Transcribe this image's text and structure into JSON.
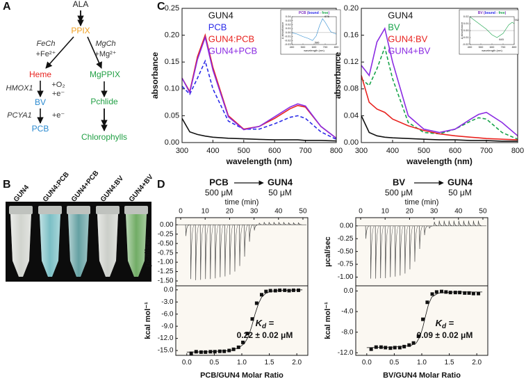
{
  "panels": [
    "A",
    "B",
    "C",
    "D"
  ],
  "pathway": {
    "nodes": [
      {
        "label": "ALA",
        "color": "#222222"
      },
      {
        "label": "PPIX",
        "color": "#f0a020"
      },
      {
        "label": "Heme",
        "color": "#e8221e"
      },
      {
        "label": "MgPPIX",
        "color": "#22a045"
      },
      {
        "label": "BV",
        "color": "#2a8ad0"
      },
      {
        "label": "PCB",
        "color": "#2a8ad0"
      },
      {
        "label": "Pchlide",
        "color": "#22a045"
      },
      {
        "label": "Chlorophylls",
        "color": "#22a045"
      }
    ],
    "enzymes": [
      "FeCh",
      "MgCh",
      "HMOX1",
      "PCYA1"
    ],
    "cofactors": [
      "+Fe²⁺",
      "+Mg²⁺",
      "+O₂",
      "+e⁻",
      "+e⁻"
    ]
  },
  "photo": {
    "labels": [
      "GUN4",
      "GUN4:PCB",
      "GUN4+PCB",
      "GUN4:BV",
      "GUN4+BV"
    ]
  },
  "chart_data": [
    {
      "type": "line",
      "xlabel": "wavelength (nm)",
      "ylabel": "absorbance",
      "legend": "upper-left",
      "xlim": [
        300,
        800
      ],
      "xticks": [
        300,
        400,
        500,
        600,
        700,
        800
      ],
      "ylim": [
        0,
        0.25
      ],
      "yticks": [
        {
          "value": 0,
          "label": "0.00"
        },
        0.05,
        {
          "value": 0.1,
          "label": "0.10"
        },
        0.15,
        {
          "value": 0.2,
          "label": "0.20"
        },
        0.25
      ],
      "x": [
        300,
        325,
        350,
        375,
        400,
        450,
        500,
        550,
        600,
        650,
        675,
        700,
        750,
        800
      ],
      "series": [
        {
          "name": "GUN4",
          "color": "#111111",
          "dashed": false,
          "values": [
            0.045,
            0.02,
            0.015,
            0.012,
            0.01,
            0.008,
            0.007,
            0.006,
            0.005,
            0.005,
            0.005,
            0.004,
            0.004,
            0.003
          ]
        },
        {
          "name": "PCB",
          "color": "#2a2ae8",
          "dashed": true,
          "values": [
            0.105,
            0.09,
            0.12,
            0.152,
            0.1,
            0.04,
            0.025,
            0.025,
            0.035,
            0.047,
            0.05,
            0.045,
            0.02,
            0.006
          ]
        },
        {
          "name": "GUN4:PCB",
          "color": "#e8221e",
          "dashed": false,
          "values": [
            0.12,
            0.095,
            0.16,
            0.2,
            0.14,
            0.05,
            0.025,
            0.03,
            0.045,
            0.063,
            0.069,
            0.066,
            0.03,
            0.008
          ]
        },
        {
          "name": "GUN4+PCB",
          "color": "#8a2be2",
          "dashed": false,
          "values": [
            0.12,
            0.093,
            0.155,
            0.196,
            0.135,
            0.048,
            0.024,
            0.03,
            0.048,
            0.066,
            0.072,
            0.068,
            0.03,
            0.008
          ]
        }
      ]
    },
    {
      "type": "line",
      "title_parts": [
        "PCB (",
        "bound",
        " - ",
        "free",
        ")"
      ],
      "title_colors": [
        "#7a2bbf",
        "#2a2ae8",
        "#7a2bbf",
        "#17a34a",
        "#7a2bbf"
      ],
      "xlabel": "wavelength (nm)",
      "ylabel": "Δ absorbance",
      "xlim": [
        400,
        800
      ],
      "xticks": [
        400,
        500,
        600,
        700,
        800
      ],
      "ylim": [
        -0.03,
        0.04
      ],
      "yticks": [
        0.04,
        0.03,
        0.02,
        0.01,
        {
          "value": 0,
          "label": "0.00"
        },
        -0.01,
        -0.02,
        -0.03
      ],
      "series": [
        {
          "color": "#2a8ad0",
          "dashed": false,
          "x": [
            400,
            450,
            500,
            550,
            586,
            620,
            650,
            676,
            700,
            750,
            800
          ],
          "values": [
            0.0,
            -0.004,
            -0.01,
            -0.015,
            -0.02,
            -0.008,
            0.018,
            0.035,
            0.026,
            0.002,
            -0.004
          ]
        }
      ],
      "annotations": [
        {
          "label": "676",
          "x": 676,
          "y": 0.035
        },
        {
          "label": "586",
          "x": 586,
          "y": -0.02
        }
      ]
    },
    {
      "type": "line",
      "xlabel": "wavelength (nm)",
      "ylabel": "absorbance",
      "legend": "upper-left",
      "xlim": [
        300,
        800
      ],
      "xticks": [
        300,
        400,
        500,
        600,
        700,
        800
      ],
      "ylim": [
        0,
        0.2
      ],
      "yticks": [
        {
          "value": 0,
          "label": "0.00"
        },
        0.04,
        0.08,
        0.12,
        0.16,
        {
          "value": 0.2,
          "label": "0.20"
        }
      ],
      "x": [
        300,
        325,
        350,
        375,
        400,
        450,
        500,
        550,
        600,
        650,
        675,
        700,
        750,
        800
      ],
      "series": [
        {
          "name": "GUN4",
          "color": "#111111",
          "dashed": false,
          "values": [
            0.04,
            0.015,
            0.01,
            0.008,
            0.007,
            0.006,
            0.005,
            0.004,
            0.004,
            0.003,
            0.003,
            0.003,
            0.002,
            0.002
          ]
        },
        {
          "name": "BV",
          "color": "#17a34a",
          "dashed": true,
          "values": [
            0.095,
            0.085,
            0.11,
            0.142,
            0.095,
            0.03,
            0.015,
            0.013,
            0.02,
            0.032,
            0.037,
            0.035,
            0.015,
            0.005
          ]
        },
        {
          "name": "GUN4:BV",
          "color": "#e8221e",
          "dashed": false,
          "values": [
            0.1,
            0.06,
            0.05,
            0.045,
            0.035,
            0.025,
            0.018,
            0.013,
            0.01,
            0.008,
            0.007,
            0.006,
            0.005,
            0.004
          ]
        },
        {
          "name": "GUN4+BV",
          "color": "#8a2be2",
          "dashed": false,
          "values": [
            0.115,
            0.1,
            0.15,
            0.17,
            0.12,
            0.04,
            0.02,
            0.015,
            0.02,
            0.035,
            0.042,
            0.045,
            0.03,
            0.01
          ]
        }
      ]
    },
    {
      "type": "line",
      "title_parts": [
        "BV (",
        "bound",
        " - ",
        "free",
        ")"
      ],
      "title_colors": [
        "#7a2bbf",
        "#2a2ae8",
        "#7a2bbf",
        "#17a34a",
        "#7a2bbf"
      ],
      "xlabel": "wavelength (nm)",
      "ylabel": "Δ absorbance",
      "xlim": [
        400,
        800
      ],
      "xticks": [
        400,
        500,
        600,
        700,
        800
      ],
      "ylim": [
        -0.02,
        0.02
      ],
      "yticks": [
        0.02,
        0.01,
        {
          "value": 0,
          "label": "0.00"
        },
        -0.01,
        -0.02
      ],
      "series": [
        {
          "color": "#17a34a",
          "dashed": false,
          "x": [
            400,
            450,
            500,
            550,
            600,
            645,
            700,
            750,
            782,
            800
          ],
          "values": [
            0.02,
            0.014,
            0.008,
            0.002,
            -0.006,
            -0.01,
            -0.004,
            0.008,
            0.012,
            0.01
          ]
        }
      ],
      "annotations": [
        {
          "label": "782",
          "x": 782,
          "y": 0.012
        },
        {
          "label": "645",
          "x": 645,
          "y": -0.01
        }
      ]
    },
    {
      "type": "thermogram",
      "header": {
        "titrant": "PCB",
        "titrant_conc": "500 μM",
        "cell": "GUN4",
        "cell_conc": "50 μM"
      },
      "xlabel": "time (min)",
      "xaxis": "top",
      "ylabel": "μcal/sec",
      "color": "#444444",
      "xlim": [
        -2,
        52
      ],
      "xticks": [
        0,
        10,
        20,
        30,
        40,
        50
      ],
      "ylim": [
        -1.63,
        0.19
      ],
      "yticks": [
        {
          "value": 0,
          "label": "0.00"
        },
        -0.25,
        {
          "value": -0.5,
          "label": "-0.50"
        },
        -0.75,
        {
          "value": -1,
          "label": "-1.00"
        },
        -1.25,
        {
          "value": -1.5,
          "label": "-1.50"
        }
      ],
      "x": [
        2,
        4,
        6,
        8,
        10,
        12,
        14,
        16,
        18,
        20,
        22,
        24,
        26,
        28,
        30,
        32,
        34,
        36,
        38,
        40,
        42,
        44,
        46,
        48
      ],
      "values": [
        -0.3,
        -1.45,
        -1.48,
        -1.47,
        -1.45,
        -1.45,
        -1.43,
        -1.4,
        -1.38,
        -1.33,
        -1.25,
        -1.1,
        -0.85,
        -0.45,
        -0.15,
        0.05,
        0.07,
        0.07,
        0.07,
        0.07,
        0.07,
        0.06,
        0.06,
        0.06
      ]
    },
    {
      "type": "scatter",
      "xlabel": "PCB/GUN4 Molar Ratio",
      "ylabel": "kcal mol⁻¹",
      "xlim": [
        -0.2,
        2.2
      ],
      "xticks": [
        {
          "value": 0,
          "label": "0.0"
        },
        {
          "value": 0.5,
          "label": "0.5"
        },
        {
          "value": 1,
          "label": "1.0"
        },
        {
          "value": 1.5,
          "label": "1.5"
        },
        {
          "value": 2,
          "label": "2.0"
        }
      ],
      "ylim": [
        -16.2,
        1.0
      ],
      "yticks": [
        {
          "value": 0,
          "label": "0.0"
        },
        {
          "value": -3,
          "label": "-3.0"
        },
        {
          "value": -6,
          "label": "-6.0"
        },
        {
          "value": -9,
          "label": "-9.0"
        },
        {
          "value": -12,
          "label": "-12.0"
        },
        {
          "value": -15,
          "label": "-15.0"
        }
      ],
      "kd": {
        "symbol": "K",
        "subscript": "d",
        "relation": " =",
        "value": "0.22 ± 0.02 μM"
      },
      "series": [
        {
          "style": "markers",
          "color": "#111111",
          "x": [
            0.08,
            0.17,
            0.26,
            0.34,
            0.43,
            0.51,
            0.6,
            0.68,
            0.77,
            0.85,
            0.94,
            1.02,
            1.1,
            1.19,
            1.27,
            1.36,
            1.44,
            1.52,
            1.61,
            1.69,
            1.78,
            1.86,
            1.94,
            2.03
          ],
          "values": [
            -15.7,
            -15.3,
            -15.4,
            -15.4,
            -15.3,
            -15.3,
            -15.2,
            -15.2,
            -15.0,
            -14.7,
            -14.2,
            -13.0,
            -10.8,
            -7.2,
            -3.3,
            -1.2,
            -0.4,
            -0.2,
            -0.2,
            -0.1,
            -0.1,
            -0.2,
            -0.1,
            -0.1
          ]
        },
        {
          "style": "line",
          "color": "#111111",
          "x": [
            0.0,
            0.4,
            0.8,
            0.95,
            1.05,
            1.12,
            1.18,
            1.24,
            1.3,
            1.36,
            1.45,
            1.6,
            2.1
          ],
          "values": [
            -15.4,
            -15.3,
            -15.0,
            -14.3,
            -13.2,
            -11.5,
            -9.0,
            -6.0,
            -3.5,
            -1.8,
            -0.7,
            -0.2,
            0.0
          ]
        }
      ]
    },
    {
      "type": "thermogram",
      "header": {
        "titrant": "BV",
        "titrant_conc": "500 μM",
        "cell": "GUN4",
        "cell_conc": "50 μM"
      },
      "xlabel": "time (min)",
      "xaxis": "top",
      "ylabel": "μcal/sec",
      "color": "#444444",
      "xlim": [
        -2,
        52
      ],
      "xticks": [
        0,
        10,
        20,
        30,
        40,
        50
      ],
      "ylim": [
        -1.17,
        0.16
      ],
      "yticks": [
        {
          "value": 0,
          "label": "0.00"
        },
        -0.25,
        {
          "value": -0.5,
          "label": "-0.50"
        },
        -0.75,
        {
          "value": -1,
          "label": "-1.00"
        }
      ],
      "x": [
        2,
        4,
        6,
        8,
        10,
        12,
        14,
        16,
        18,
        20,
        22,
        24,
        26,
        28,
        30,
        32,
        34,
        36,
        38,
        40,
        42,
        44,
        46,
        48
      ],
      "values": [
        -0.25,
        -1.03,
        -1.03,
        -1.02,
        -1.02,
        -1.0,
        -0.99,
        -0.97,
        -0.93,
        -0.85,
        -0.7,
        -0.45,
        -0.18,
        -0.05,
        0.08,
        0.1,
        0.1,
        0.1,
        0.1,
        0.1,
        0.1,
        0.1,
        0.1,
        0.1
      ]
    },
    {
      "type": "scatter",
      "xlabel": "BV/GUN4 Molar Ratio",
      "ylabel": "kcal mol⁻¹",
      "xlim": [
        -0.2,
        2.2
      ],
      "xticks": [
        {
          "value": 0,
          "label": "0.0"
        },
        {
          "value": 0.5,
          "label": "0.5"
        },
        {
          "value": 1,
          "label": "1.0"
        },
        {
          "value": 1.5,
          "label": "1.5"
        },
        {
          "value": 2,
          "label": "2.0"
        }
      ],
      "ylim": [
        -12.5,
        1.0
      ],
      "yticks": [
        {
          "value": 0,
          "label": "0.0"
        },
        {
          "value": -4,
          "label": "-4.0"
        },
        {
          "value": -8,
          "label": "-8.0"
        },
        {
          "value": -12,
          "label": "-12.0"
        }
      ],
      "kd": {
        "symbol": "K",
        "subscript": "d",
        "relation": " =",
        "value": "0.09 ± 0.02 μM"
      },
      "series": [
        {
          "style": "markers",
          "color": "#111111",
          "x": [
            0.08,
            0.17,
            0.26,
            0.34,
            0.43,
            0.51,
            0.6,
            0.68,
            0.77,
            0.85,
            0.94,
            1.02,
            1.1,
            1.19,
            1.27,
            1.36,
            1.44,
            1.52,
            1.61,
            1.69,
            1.78,
            1.86,
            1.94,
            2.03
          ],
          "values": [
            -11.3,
            -10.9,
            -10.9,
            -11.0,
            -11.1,
            -11.0,
            -11.0,
            -10.8,
            -10.5,
            -10.1,
            -8.8,
            -5.5,
            -2.2,
            -0.6,
            -0.2,
            -0.1,
            -0.2,
            -0.3,
            -0.3,
            -0.3,
            -0.4,
            -0.4,
            -0.5,
            -0.5
          ]
        },
        {
          "style": "line",
          "color": "#111111",
          "x": [
            0.0,
            0.5,
            0.8,
            0.9,
            0.97,
            1.02,
            1.07,
            1.12,
            1.18,
            1.3,
            1.6,
            2.1
          ],
          "values": [
            -11.0,
            -10.9,
            -10.6,
            -10.1,
            -8.8,
            -7.0,
            -4.8,
            -2.7,
            -1.2,
            -0.4,
            -0.2,
            -0.2
          ]
        }
      ]
    }
  ]
}
